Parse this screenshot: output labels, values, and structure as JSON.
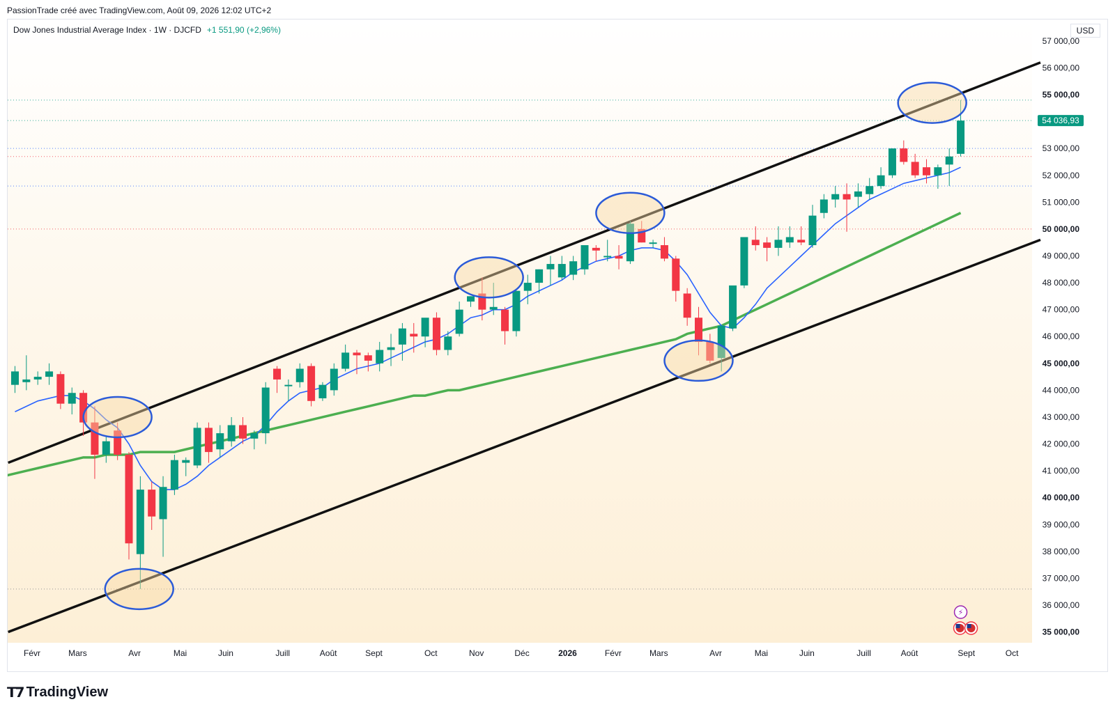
{
  "header": {
    "text": "PassionTrade créé avec TradingView.com, Août 09, 2026 12:02 UTC+2"
  },
  "legend": {
    "symbol": "Dow Jones Industrial Average Index · 1W · DJCFD",
    "change": "+1 551,90 (+2,96%)"
  },
  "currency": "USD",
  "brand": {
    "name": "TradingView",
    "logo_icon": "tradingview-logo-icon"
  },
  "colors": {
    "up": "#089981",
    "down": "#f23645",
    "ma_fast": "#2962ff",
    "ma_slow": "#4caf50",
    "channel": "#111111",
    "circle": "#2b5bd8"
  },
  "chart_data": {
    "type": "candlestick",
    "timeframe": "1W",
    "ylim": [
      34600,
      57800
    ],
    "y_ticks": [
      35000,
      36000,
      37000,
      38000,
      39000,
      40000,
      41000,
      42000,
      43000,
      44000,
      45000,
      46000,
      47000,
      48000,
      49000,
      50000,
      51000,
      52000,
      53000,
      54000,
      55000,
      56000,
      57000
    ],
    "y_tick_labels": [
      "35 000,00",
      "36 000,00",
      "37 000,00",
      "38 000,00",
      "39 000,00",
      "40 000,00",
      "41 000,00",
      "42 000,00",
      "43 000,00",
      "44 000,00",
      "45 000,00",
      "46 000,00",
      "47 000,00",
      "48 000,00",
      "49 000,00",
      "50 000,00",
      "51 000,00",
      "52 000,00",
      "53 000,00",
      "",
      "55 000,00",
      "56 000,00",
      "57 000,00"
    ],
    "bold_ticks": [
      35000,
      40000,
      45000,
      50000,
      55000
    ],
    "x_tick_labels": [
      {
        "label": "Févr",
        "bar": 1.5
      },
      {
        "label": "Mars",
        "bar": 5.5
      },
      {
        "label": "Avr",
        "bar": 10.5
      },
      {
        "label": "Mai",
        "bar": 14.5
      },
      {
        "label": "Juin",
        "bar": 18.5
      },
      {
        "label": "Juill",
        "bar": 23.5
      },
      {
        "label": "Août",
        "bar": 27.5
      },
      {
        "label": "Sept",
        "bar": 31.5
      },
      {
        "label": "Oct",
        "bar": 36.5
      },
      {
        "label": "Nov",
        "bar": 40.5
      },
      {
        "label": "Déc",
        "bar": 44.5
      },
      {
        "label": "2026",
        "bar": 48.5,
        "bold": true
      },
      {
        "label": "Févr",
        "bar": 52.5
      },
      {
        "label": "Mars",
        "bar": 56.5
      },
      {
        "label": "Avr",
        "bar": 61.5
      },
      {
        "label": "Mai",
        "bar": 65.5
      },
      {
        "label": "Juin",
        "bar": 69.5
      },
      {
        "label": "Juill",
        "bar": 74.5
      },
      {
        "label": "Août",
        "bar": 78.5
      },
      {
        "label": "Sept",
        "bar": 83.5
      },
      {
        "label": "Oct",
        "bar": 87.5
      }
    ],
    "last_price": {
      "value": 54036.93,
      "label": "54 036,93"
    },
    "candles": [
      [
        44200,
        44900,
        43900,
        44700
      ],
      [
        44300,
        45300,
        44000,
        44400
      ],
      [
        44400,
        44700,
        44200,
        44500
      ],
      [
        44500,
        45000,
        44200,
        44700
      ],
      [
        44600,
        44700,
        43300,
        43500
      ],
      [
        43500,
        44100,
        43100,
        43900
      ],
      [
        43900,
        44000,
        42300,
        42800
      ],
      [
        42800,
        43400,
        40700,
        41600
      ],
      [
        41600,
        42300,
        41300,
        42100
      ],
      [
        42500,
        42800,
        41400,
        41600
      ],
      [
        41600,
        41700,
        37700,
        38300
      ],
      [
        37900,
        40800,
        36600,
        40300
      ],
      [
        40300,
        40600,
        38800,
        39300
      ],
      [
        39200,
        40800,
        37800,
        40400
      ],
      [
        40300,
        41600,
        40100,
        41400
      ],
      [
        41300,
        41500,
        40800,
        41400
      ],
      [
        41200,
        42800,
        41100,
        42600
      ],
      [
        42600,
        42800,
        41300,
        41700
      ],
      [
        41800,
        42700,
        41500,
        42400
      ],
      [
        42100,
        43000,
        41900,
        42700
      ],
      [
        42700,
        43000,
        42000,
        42200
      ],
      [
        42200,
        42500,
        41800,
        42400
      ],
      [
        42400,
        44300,
        42000,
        44100
      ],
      [
        44800,
        44900,
        43900,
        44400
      ],
      [
        44200,
        44400,
        43600,
        44200
      ],
      [
        44300,
        45000,
        44100,
        44800
      ],
      [
        44900,
        45000,
        43400,
        43600
      ],
      [
        43700,
        44300,
        43600,
        44200
      ],
      [
        44000,
        45000,
        43800,
        44800
      ],
      [
        44800,
        45700,
        44700,
        45400
      ],
      [
        45400,
        45500,
        44600,
        45300
      ],
      [
        45300,
        45400,
        44700,
        45100
      ],
      [
        45000,
        45800,
        44700,
        45500
      ],
      [
        45500,
        46100,
        44900,
        45600
      ],
      [
        45700,
        46500,
        45100,
        46300
      ],
      [
        46100,
        46500,
        45400,
        46000
      ],
      [
        46000,
        46600,
        45600,
        46700
      ],
      [
        46700,
        46900,
        45300,
        45500
      ],
      [
        45500,
        46200,
        45300,
        46000
      ],
      [
        46100,
        47300,
        46000,
        47000
      ],
      [
        47300,
        47500,
        47100,
        47500
      ],
      [
        47600,
        48200,
        46600,
        47000
      ],
      [
        47000,
        48000,
        46800,
        47100
      ],
      [
        47000,
        47100,
        45700,
        46200
      ],
      [
        46200,
        47700,
        46000,
        47700
      ],
      [
        47700,
        48300,
        47200,
        48000
      ],
      [
        48000,
        48500,
        47600,
        48500
      ],
      [
        48500,
        49000,
        47900,
        48700
      ],
      [
        48200,
        49000,
        48100,
        48700
      ],
      [
        48300,
        49000,
        48100,
        48800
      ],
      [
        48500,
        49300,
        48300,
        49400
      ],
      [
        49300,
        49400,
        48800,
        49200
      ],
      [
        49000,
        49600,
        48800,
        49000
      ],
      [
        49000,
        49400,
        48500,
        48900
      ],
      [
        48800,
        50300,
        48700,
        50200
      ],
      [
        50000,
        50300,
        49500,
        49500
      ],
      [
        49500,
        49600,
        49300,
        49500
      ],
      [
        49400,
        49700,
        48800,
        48900
      ],
      [
        48900,
        49000,
        47300,
        47700
      ],
      [
        47600,
        47800,
        46400,
        46700
      ],
      [
        46700,
        47100,
        45300,
        45800
      ],
      [
        45800,
        46100,
        45000,
        45100
      ],
      [
        45200,
        46300,
        44700,
        46400
      ],
      [
        46300,
        47700,
        46200,
        47900
      ],
      [
        47900,
        49500,
        47800,
        49700
      ],
      [
        49600,
        50100,
        49200,
        49400
      ],
      [
        49500,
        49700,
        48800,
        49300
      ],
      [
        49300,
        50100,
        49000,
        49600
      ],
      [
        49500,
        50100,
        49300,
        49700
      ],
      [
        49600,
        50100,
        49400,
        49500
      ],
      [
        49400,
        50900,
        49300,
        50500
      ],
      [
        50600,
        51300,
        50400,
        51100
      ],
      [
        51100,
        51600,
        50800,
        51300
      ],
      [
        51300,
        51700,
        49900,
        51100
      ],
      [
        51200,
        51700,
        50800,
        51400
      ],
      [
        51300,
        51900,
        51100,
        51600
      ],
      [
        51600,
        52300,
        51500,
        52000
      ],
      [
        52000,
        53000,
        51900,
        53000
      ],
      [
        53000,
        53300,
        52400,
        52500
      ],
      [
        52500,
        52800,
        51900,
        52000
      ],
      [
        52300,
        52600,
        51700,
        52000
      ],
      [
        52000,
        52400,
        51500,
        52300
      ],
      [
        52400,
        53000,
        51600,
        52700
      ],
      [
        52800,
        54800,
        52700,
        54036.93
      ]
    ],
    "ma_fast": [
      43200,
      43400,
      43600,
      43700,
      43800,
      43800,
      43600,
      43300,
      42900,
      42600,
      42000,
      41200,
      40600,
      40300,
      40300,
      40500,
      40800,
      41200,
      41500,
      41800,
      42100,
      42300,
      42700,
      43200,
      43600,
      43900,
      44000,
      44100,
      44400,
      44600,
      44800,
      44900,
      45000,
      45200,
      45400,
      45600,
      45800,
      45900,
      46100,
      46400,
      46700,
      46800,
      47000,
      47000,
      47200,
      47500,
      47700,
      47900,
      48100,
      48400,
      48600,
      48800,
      48900,
      49000,
      49200,
      49300,
      49300,
      49200,
      48800,
      48300,
      47600,
      46900,
      46400,
      46300,
      46700,
      47200,
      47800,
      48200,
      48600,
      49000,
      49400,
      49800,
      50200,
      50500,
      50800,
      51100,
      51300,
      51500,
      51700,
      51800,
      51900,
      52000,
      52100,
      52300
    ],
    "ma_slow": [
      40800,
      40900,
      41000,
      41100,
      41200,
      41300,
      41400,
      41500,
      41500,
      41600,
      41600,
      41600,
      41700,
      41700,
      41700,
      41700,
      41800,
      41900,
      42000,
      42100,
      42200,
      42300,
      42400,
      42500,
      42600,
      42700,
      42800,
      42900,
      43000,
      43100,
      43200,
      43300,
      43400,
      43500,
      43600,
      43700,
      43800,
      43800,
      43900,
      44000,
      44000,
      44100,
      44200,
      44300,
      44400,
      44500,
      44600,
      44700,
      44800,
      44900,
      45000,
      45100,
      45200,
      45300,
      45400,
      45500,
      45600,
      45700,
      45800,
      45900,
      46100,
      46200,
      46300,
      46400,
      46600,
      46800,
      47000,
      47200,
      47400,
      47600,
      47800,
      48000,
      48200,
      48400,
      48600,
      48800,
      49000,
      49200,
      49400,
      49600,
      49800,
      50000,
      50200,
      50400,
      50600
    ],
    "channel_upper": {
      "p1": {
        "bar": -0.6,
        "value": 41300
      },
      "p2": {
        "bar": 90.0,
        "value": 56200
      }
    },
    "channel_lower": {
      "p1": {
        "bar": -0.6,
        "value": 35000
      },
      "p2": {
        "bar": 90.0,
        "value": 49600
      }
    },
    "hlines": [
      {
        "value": 54800,
        "color": "#089981"
      },
      {
        "value": 54036.93,
        "color": "#089981"
      },
      {
        "value": 53000,
        "color": "#2962ff"
      },
      {
        "value": 52700,
        "color": "#f23645"
      },
      {
        "value": 51600,
        "color": "#2962ff"
      },
      {
        "value": 50000,
        "color": "#f23645"
      },
      {
        "value": 36600,
        "color": "#787b86"
      }
    ],
    "highlights": [
      {
        "bar": 9.0,
        "value": 43000
      },
      {
        "bar": 10.9,
        "value": 36600
      },
      {
        "bar": 41.6,
        "value": 48200
      },
      {
        "bar": 54.0,
        "value": 50600
      },
      {
        "bar": 60.0,
        "value": 45100
      },
      {
        "bar": 80.5,
        "value": 54700
      }
    ],
    "event_icons": [
      "lightning-icon",
      "us-flag-icon",
      "us-flag-icon"
    ]
  }
}
